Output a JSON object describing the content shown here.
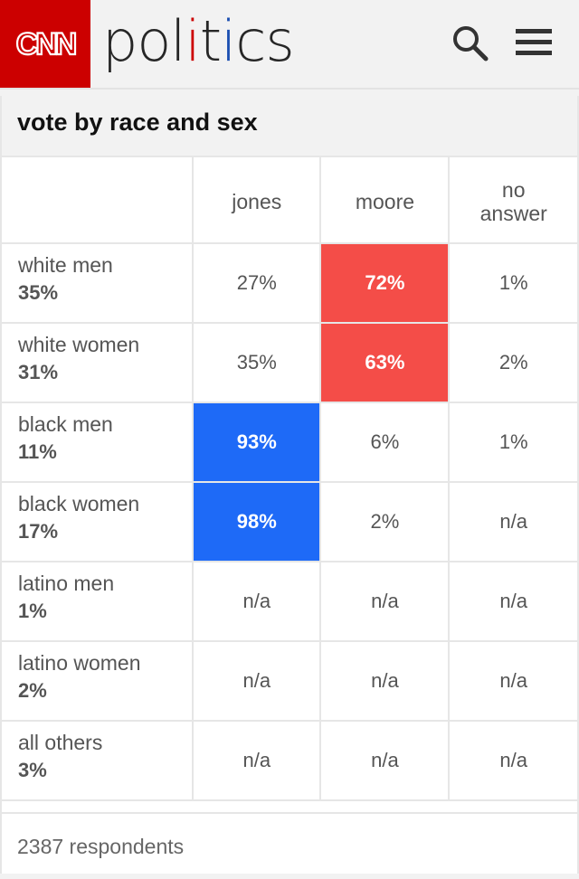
{
  "header": {
    "logo_text": "CNN",
    "section": {
      "part1": "pol",
      "i1": "i",
      "part2": "t",
      "i2": "i",
      "part3": "cs"
    },
    "search_icon": "search-icon",
    "menu_icon": "hamburger-menu-icon"
  },
  "card": {
    "title": "vote by race and sex",
    "columns": [
      "jones",
      "moore",
      "no\nanswer"
    ],
    "rows": [
      {
        "group": "white men",
        "share": "35%",
        "values": [
          "27%",
          "72%",
          "1%"
        ],
        "winner": 1
      },
      {
        "group": "white women",
        "share": "31%",
        "values": [
          "35%",
          "63%",
          "2%"
        ],
        "winner": 1
      },
      {
        "group": "black men",
        "share": "11%",
        "values": [
          "93%",
          "6%",
          "1%"
        ],
        "winner": 0
      },
      {
        "group": "black women",
        "share": "17%",
        "values": [
          "98%",
          "2%",
          "n/a"
        ],
        "winner": 0
      },
      {
        "group": "latino men",
        "share": "1%",
        "values": [
          "n/a",
          "n/a",
          "n/a"
        ],
        "winner": -1
      },
      {
        "group": "latino women",
        "share": "2%",
        "values": [
          "n/a",
          "n/a",
          "n/a"
        ],
        "winner": -1
      },
      {
        "group": "all others",
        "share": "3%",
        "values": [
          "n/a",
          "n/a",
          "n/a"
        ],
        "winner": -1
      }
    ],
    "footer": "2387 respondents"
  },
  "colors": {
    "brand_red": "#cc0000",
    "brand_blue": "#1a4eb1",
    "moore_highlight": "#f44d48",
    "jones_highlight": "#1e6af7"
  }
}
